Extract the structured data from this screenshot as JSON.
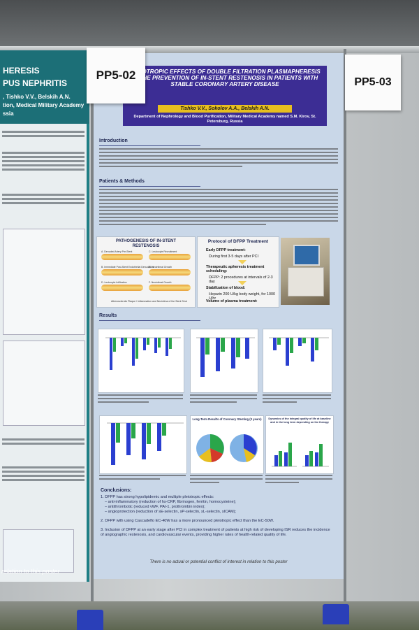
{
  "labels": {
    "main_id": "PP5-02",
    "right_id": "PP5-03"
  },
  "left_poster": {
    "header_lines": [
      "HERESIS",
      "PUS NEPHRITIS",
      ", Tishko V.V., Belskih A.N.",
      "tion, Medical Military Academy",
      "ssia"
    ],
    "footer": "relation to this poster"
  },
  "poster": {
    "title": "PLEIOTROPIC EFFECTS OF DOUBLE FILTRATION PLASMAPHERESIS IN THE PREVENTION OF IN-STENT RESTENOSIS IN PATIENTS WITH STABLE CORONARY ARTERY DISEASE",
    "authors": "Tishko V.V., Sokolov A.A., Belskih A.N.",
    "affiliation": "Department of Nephrology and Blood Purification, Military Medical Academy named S.M. Kirov, St. Petersburg, Russia",
    "sections": {
      "introduction": "Introduction",
      "methods": "Patients & Methods",
      "results": "Results"
    },
    "pathogenesis": {
      "title": "PATHOGENESIS OF IN-STENT RESTENOSIS",
      "steps": [
        "A. Denuded Artery Pre-Stent",
        "B. Immediate Post-Stent Endothelial Denudation",
        "C. Leukocyte Recruitment",
        "D. Leukocyte Infiltration",
        "E. Neointimal Growth",
        "F. Neointimal Growth"
      ],
      "caption": "Atherosclerotic Plaque / Inflammation and Neointima of the Stent Strut"
    },
    "protocol": {
      "title": "Protocol  of  DFPP Treatment",
      "items": [
        "Early DFPP treatment:",
        "During first 3-5 days after PCI",
        "Therapeutic apheresis treatment scheduling:",
        "DFPP: 2 procedures at intervals of 2-3 day",
        "Stabilization of blood:",
        "Heparin 200 U/kg body weight, for 1000 U/hr",
        "Volume of plasma treatment:"
      ]
    },
    "conclusions": {
      "title": "Conclusions:",
      "items": [
        "1. DFPP has strong hypolipidemic and multiple pleiotropic effects:",
        "– anti-inflammatory (reduction of hs-CRP, fibrinogen, ferritin, homocysteine);",
        "– antithrombotic (reduced vWF, PAI-1, prothrombin index);",
        "– angioprotection (reduction of sE-selectin, sP-selectin, sL-selectin, sICAM);",
        "2. DFPP with using Cascadeflo EC-40W has a more pronounced pleiotropic effect than the EC-50W.",
        "3. Inclusion of DFPP at an early stage after PCI in complex treatment of patients at high risk of developing ISR reduces the incidence of angiographic restenosis, and cardiovascular events, providing higher rates of health-related quality of life."
      ]
    },
    "conflict": "There is no actual or potential conflict of interest in relation to this poster",
    "chart_titles": [
      "Long-Term Results of Coronary Stenting (3 years)",
      "Dynamics of the integral quality of life at baseline and in the long term depending on the therapy"
    ]
  },
  "colors": {
    "title_band": "#3c2d94",
    "author_bar": "#e8bf1f",
    "poster_bg": "#c9d7e8",
    "bar_blue": "#2a3fd0",
    "bar_green": "#2aa64a"
  }
}
